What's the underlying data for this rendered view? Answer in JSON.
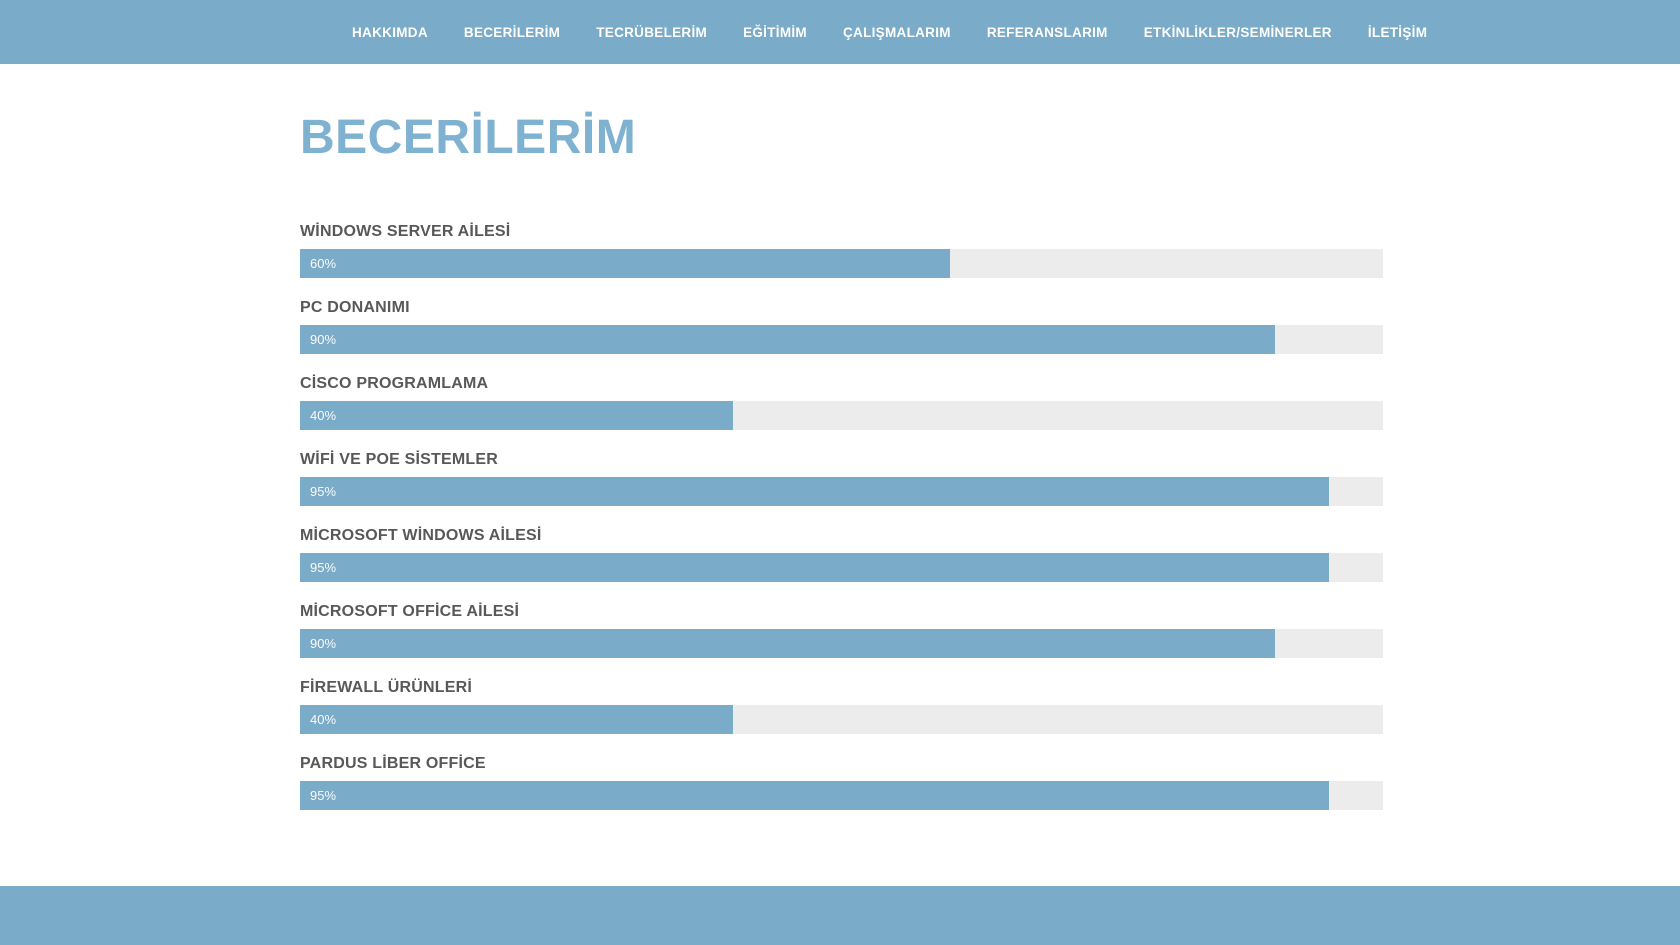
{
  "nav": {
    "items": [
      {
        "label": "HAKKIMDA"
      },
      {
        "label": "BECERİLERİM"
      },
      {
        "label": "TECRÜBELERİM"
      },
      {
        "label": "EĞİTİMİM"
      },
      {
        "label": "ÇALIŞMALARIM"
      },
      {
        "label": "REFERANSLARIM"
      },
      {
        "label": "ETKİNLİKLER/SEMİNERLER"
      },
      {
        "label": "İLETİŞİM"
      }
    ]
  },
  "main": {
    "title": "BECERİLERİM"
  },
  "skills": [
    {
      "label": "WİNDOWS SERVER AİLESİ",
      "percent": 60,
      "percent_label": "60%"
    },
    {
      "label": "PC DONANIMI",
      "percent": 90,
      "percent_label": "90%"
    },
    {
      "label": "CİSCO PROGRAMLAMA",
      "percent": 40,
      "percent_label": "40%"
    },
    {
      "label": "WİFİ VE POE SİSTEMLER",
      "percent": 95,
      "percent_label": "95%"
    },
    {
      "label": "MİCROSOFT WİNDOWS AİLESİ",
      "percent": 95,
      "percent_label": "95%"
    },
    {
      "label": "MİCROSOFT OFFİCE AİLESİ",
      "percent": 90,
      "percent_label": "90%"
    },
    {
      "label": "FİREWALL ÜRÜNLERİ",
      "percent": 40,
      "percent_label": "40%"
    },
    {
      "label": "PARDUS LİBER OFFİCE",
      "percent": 95,
      "percent_label": "95%"
    }
  ],
  "colors": {
    "accent_blue": "#7aabc9",
    "title_blue": "#7fb2d0",
    "track_gray": "#ececec",
    "label_gray": "#57585a",
    "nav_text": "#ffffff"
  },
  "chart_data": {
    "type": "bar",
    "orientation": "horizontal",
    "title": "BECERİLERİM",
    "categories": [
      "WİNDOWS SERVER AİLESİ",
      "PC DONANIMI",
      "CİSCO PROGRAMLAMA",
      "WİFİ VE POE SİSTEMLER",
      "MİCROSOFT WİNDOWS AİLESİ",
      "MİCROSOFT OFFİCE AİLESİ",
      "FİREWALL ÜRÜNLERİ",
      "PARDUS LİBER OFFİCE"
    ],
    "values": [
      60,
      90,
      40,
      95,
      95,
      90,
      40,
      95
    ],
    "value_unit": "%",
    "xlim": [
      0,
      100
    ],
    "grid": false,
    "legend": false
  }
}
